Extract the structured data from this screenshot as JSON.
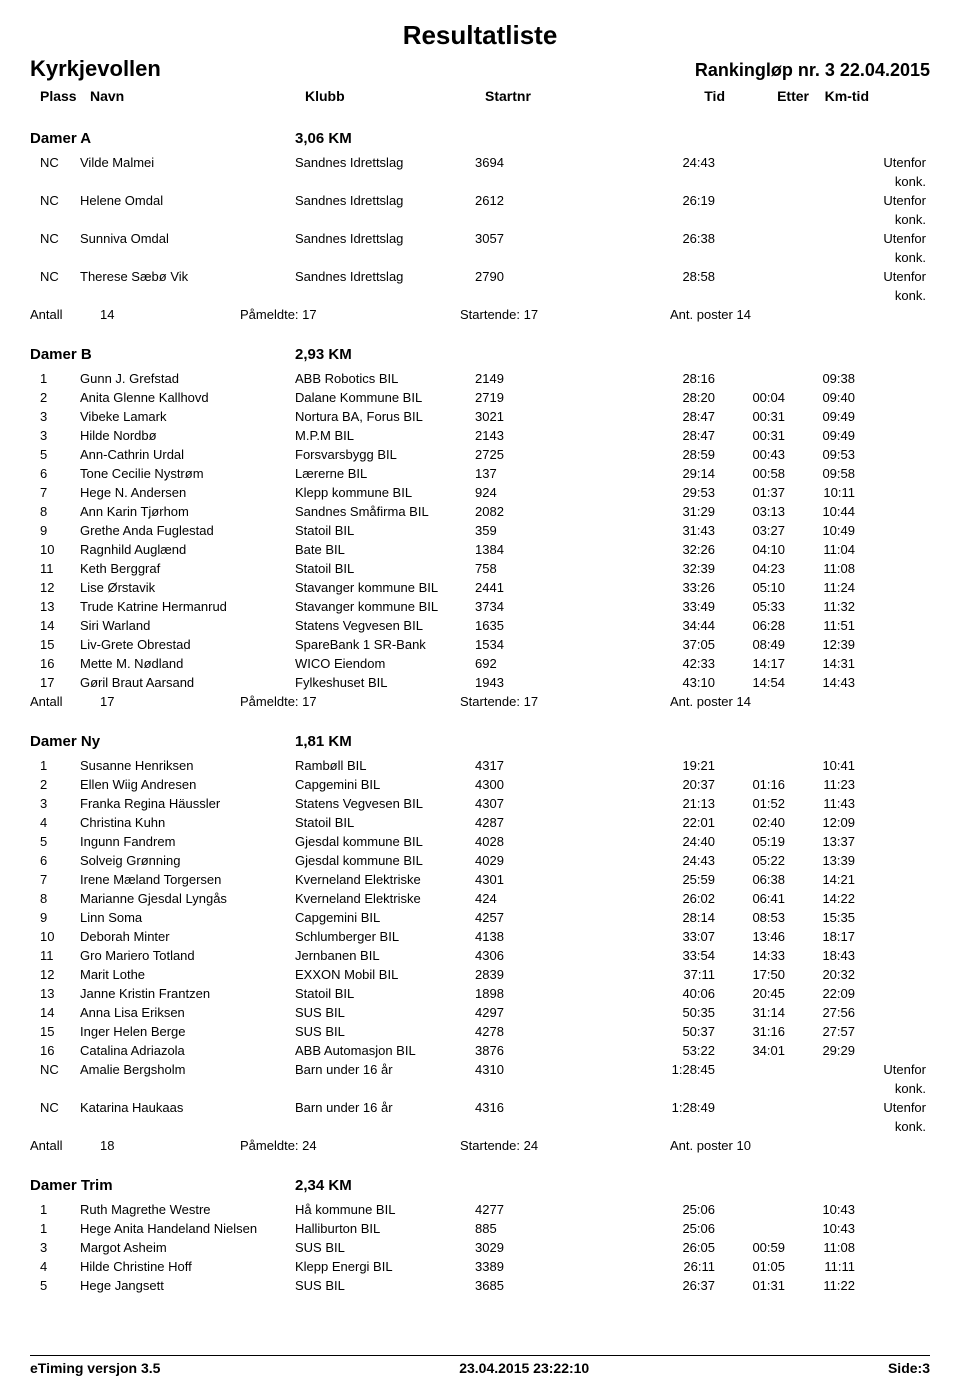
{
  "header": {
    "main_title": "Resultatliste",
    "location": "Kyrkjevollen",
    "event": "Rankingløp nr. 3  22.04.2015",
    "columns": {
      "place": "Plass",
      "name": "Navn",
      "club": "Klubb",
      "startnr": "Startnr",
      "time": "Tid",
      "after": "Etter",
      "kmtid": "Km-tid"
    }
  },
  "summary_labels": {
    "antall": "Antall",
    "paameldte": "Påmeldte:",
    "startende": "Startende:",
    "ant_poster": "Ant. poster"
  },
  "groups": [
    {
      "name": "Damer A",
      "distance": "3,06 KM",
      "rows": [
        {
          "place": "NC",
          "prefix": "0",
          "name": "Vilde Malmei",
          "club": "Sandnes Idrettslag",
          "start": "3694",
          "time": "24:43",
          "after": "",
          "km": "",
          "note": "Utenfor konk."
        },
        {
          "place": "NC",
          "name": "Helene Omdal",
          "club": "Sandnes Idrettslag",
          "start": "2612",
          "time": "26:19",
          "after": "",
          "km": "",
          "note": "Utenfor konk."
        },
        {
          "place": "NC",
          "name": "Sunniva Omdal",
          "club": "Sandnes Idrettslag",
          "start": "3057",
          "time": "26:38",
          "after": "",
          "km": "",
          "note": "Utenfor konk."
        },
        {
          "place": "NC",
          "name": "Therese Sæbø Vik",
          "club": "Sandnes Idrettslag",
          "start": "2790",
          "time": "28:58",
          "after": "",
          "km": "",
          "note": "Utenfor konk."
        }
      ],
      "summary": {
        "antall": "14",
        "paameldte": "17",
        "startende": "17",
        "poster": "14"
      }
    },
    {
      "name": "Damer B",
      "distance": "2,93 KM",
      "rows": [
        {
          "place": "1",
          "name": "Gunn J. Grefstad",
          "club": "ABB Robotics BIL",
          "start": "2149",
          "time": "28:16",
          "after": "",
          "km": "09:38"
        },
        {
          "place": "2",
          "name": "Anita Glenne Kallhovd",
          "club": "Dalane Kommune BIL",
          "start": "2719",
          "time": "28:20",
          "after": "00:04",
          "km": "09:40"
        },
        {
          "place": "3",
          "name": "Vibeke Lamark",
          "club": "Nortura BA, Forus BIL",
          "start": "3021",
          "time": "28:47",
          "after": "00:31",
          "km": "09:49"
        },
        {
          "place": "3",
          "name": "Hilde Nordbø",
          "club": "M.P.M BIL",
          "start": "2143",
          "time": "28:47",
          "after": "00:31",
          "km": "09:49"
        },
        {
          "place": "5",
          "name": "Ann-Cathrin Urdal",
          "club": "Forsvarsbygg BIL",
          "start": "2725",
          "time": "28:59",
          "after": "00:43",
          "km": "09:53"
        },
        {
          "place": "6",
          "name": "Tone Cecilie Nystrøm",
          "club": "Lærerne BIL",
          "start": "137",
          "time": "29:14",
          "after": "00:58",
          "km": "09:58"
        },
        {
          "place": "7",
          "name": "Hege N. Andersen",
          "club": "Klepp kommune BIL",
          "start": "924",
          "time": "29:53",
          "after": "01:37",
          "km": "10:11"
        },
        {
          "place": "8",
          "name": "Ann Karin Tjørhom",
          "club": "Sandnes Småfirma BIL",
          "start": "2082",
          "time": "31:29",
          "after": "03:13",
          "km": "10:44"
        },
        {
          "place": "9",
          "name": "Grethe Anda Fuglestad",
          "club": "Statoil BIL",
          "start": "359",
          "time": "31:43",
          "after": "03:27",
          "km": "10:49"
        },
        {
          "place": "10",
          "name": "Ragnhild Auglænd",
          "club": "Bate BIL",
          "start": "1384",
          "time": "32:26",
          "after": "04:10",
          "km": "11:04"
        },
        {
          "place": "11",
          "name": "Keth Berggraf",
          "club": "Statoil BIL",
          "start": "758",
          "time": "32:39",
          "after": "04:23",
          "km": "11:08"
        },
        {
          "place": "12",
          "name": "Lise Ørstavik",
          "club": "Stavanger kommune BIL",
          "start": "2441",
          "time": "33:26",
          "after": "05:10",
          "km": "11:24"
        },
        {
          "place": "13",
          "name": "Trude Katrine Hermanrud",
          "club": "Stavanger kommune BIL",
          "start": "3734",
          "time": "33:49",
          "after": "05:33",
          "km": "11:32"
        },
        {
          "place": "14",
          "name": "Siri Warland",
          "club": "Statens Vegvesen BIL",
          "start": "1635",
          "time": "34:44",
          "after": "06:28",
          "km": "11:51"
        },
        {
          "place": "15",
          "name": "Liv-Grete Obrestad",
          "club": "SpareBank 1 SR-Bank",
          "start": "1534",
          "time": "37:05",
          "after": "08:49",
          "km": "12:39"
        },
        {
          "place": "16",
          "name": "Mette M. Nødland",
          "club": "WICO Eiendom",
          "start": "692",
          "time": "42:33",
          "after": "14:17",
          "km": "14:31"
        },
        {
          "place": "17",
          "name": "Gøril Braut Aarsand",
          "club": "Fylkeshuset BIL",
          "start": "1943",
          "time": "43:10",
          "after": "14:54",
          "km": "14:43"
        }
      ],
      "summary": {
        "antall": "17",
        "paameldte": "17",
        "startende": "17",
        "poster": "14"
      }
    },
    {
      "name": "Damer Ny",
      "distance": "1,81 KM",
      "rows": [
        {
          "place": "1",
          "name": "Susanne Henriksen",
          "club": "Rambøll BIL",
          "start": "4317",
          "time": "19:21",
          "after": "",
          "km": "10:41"
        },
        {
          "place": "2",
          "name": "Ellen Wiig Andresen",
          "club": "Capgemini BIL",
          "start": "4300",
          "time": "20:37",
          "after": "01:16",
          "km": "11:23"
        },
        {
          "place": "3",
          "name": "Franka Regina Häussler",
          "club": "Statens Vegvesen BIL",
          "start": "4307",
          "time": "21:13",
          "after": "01:52",
          "km": "11:43"
        },
        {
          "place": "4",
          "name": "Christina Kuhn",
          "club": "Statoil BIL",
          "start": "4287",
          "time": "22:01",
          "after": "02:40",
          "km": "12:09"
        },
        {
          "place": "5",
          "name": "Ingunn Fandrem",
          "club": "Gjesdal kommune BIL",
          "start": "4028",
          "time": "24:40",
          "after": "05:19",
          "km": "13:37"
        },
        {
          "place": "6",
          "name": "Solveig Grønning",
          "club": "Gjesdal kommune BIL",
          "start": "4029",
          "time": "24:43",
          "after": "05:22",
          "km": "13:39"
        },
        {
          "place": "7",
          "name": "Irene Mæland Torgersen",
          "club": "Kverneland Elektriske",
          "start": "4301",
          "time": "25:59",
          "after": "06:38",
          "km": "14:21"
        },
        {
          "place": "8",
          "name": "Marianne Gjesdal Lyngås",
          "club": "Kverneland Elektriske",
          "start": "424",
          "time": "26:02",
          "after": "06:41",
          "km": "14:22"
        },
        {
          "place": "9",
          "name": "Linn Soma",
          "club": "Capgemini BIL",
          "start": "4257",
          "time": "28:14",
          "after": "08:53",
          "km": "15:35"
        },
        {
          "place": "10",
          "name": "Deborah Minter",
          "club": "Schlumberger BIL",
          "start": "4138",
          "time": "33:07",
          "after": "13:46",
          "km": "18:17"
        },
        {
          "place": "11",
          "name": "Gro Mariero Totland",
          "club": "Jernbanen BIL",
          "start": "4306",
          "time": "33:54",
          "after": "14:33",
          "km": "18:43"
        },
        {
          "place": "12",
          "name": "Marit Lothe",
          "club": "EXXON Mobil BIL",
          "start": "2839",
          "time": "37:11",
          "after": "17:50",
          "km": "20:32"
        },
        {
          "place": "13",
          "name": "Janne Kristin Frantzen",
          "club": "Statoil BIL",
          "start": "1898",
          "time": "40:06",
          "after": "20:45",
          "km": "22:09"
        },
        {
          "place": "14",
          "name": "Anna Lisa Eriksen",
          "club": "SUS BIL",
          "start": "4297",
          "time": "50:35",
          "after": "31:14",
          "km": "27:56"
        },
        {
          "place": "15",
          "name": "Inger Helen Berge",
          "club": "SUS BIL",
          "start": "4278",
          "time": "50:37",
          "after": "31:16",
          "km": "27:57"
        },
        {
          "place": "16",
          "name": "Catalina Adriazola",
          "club": "ABB Automasjon BIL",
          "start": "3876",
          "time": "53:22",
          "after": "34:01",
          "km": "29:29"
        },
        {
          "place": "NC",
          "name": "Amalie Bergsholm",
          "club": "Barn under 16 år",
          "start": "4310",
          "time": "1:28:45",
          "after": "",
          "km": "",
          "note": "Utenfor konk."
        },
        {
          "place": "NC",
          "name": "Katarina Haukaas",
          "club": "Barn under 16 år",
          "start": "4316",
          "time": "1:28:49",
          "after": "",
          "km": "",
          "note": "Utenfor konk."
        }
      ],
      "summary": {
        "antall": "18",
        "paameldte": "24",
        "startende": "24",
        "poster": "10"
      }
    },
    {
      "name": "Damer Trim",
      "distance": "2,34 KM",
      "rows": [
        {
          "place": "1",
          "name": "Ruth Magrethe Westre",
          "club": "Hå kommune BIL",
          "start": "4277",
          "time": "25:06",
          "after": "",
          "km": "10:43"
        },
        {
          "place": "1",
          "name": "Hege Anita Handeland Nielsen",
          "club": "Halliburton BIL",
          "start": "885",
          "time": "25:06",
          "after": "",
          "km": "10:43"
        },
        {
          "place": "3",
          "name": "Margot Asheim",
          "club": "SUS BIL",
          "start": "3029",
          "time": "26:05",
          "after": "00:59",
          "km": "11:08"
        },
        {
          "place": "4",
          "name": "Hilde Christine Hoff",
          "club": "Klepp Energi BIL",
          "start": "3389",
          "time": "26:11",
          "after": "01:05",
          "km": "11:11"
        },
        {
          "place": "5",
          "name": "Hege Jangsett",
          "club": "SUS BIL",
          "start": "3685",
          "time": "26:37",
          "after": "01:31",
          "km": "11:22"
        }
      ],
      "summary": null
    }
  ],
  "footer": {
    "left": "eTiming versjon 3.5",
    "center": "23.04.2015 23:22:10",
    "right": "Side:3"
  }
}
